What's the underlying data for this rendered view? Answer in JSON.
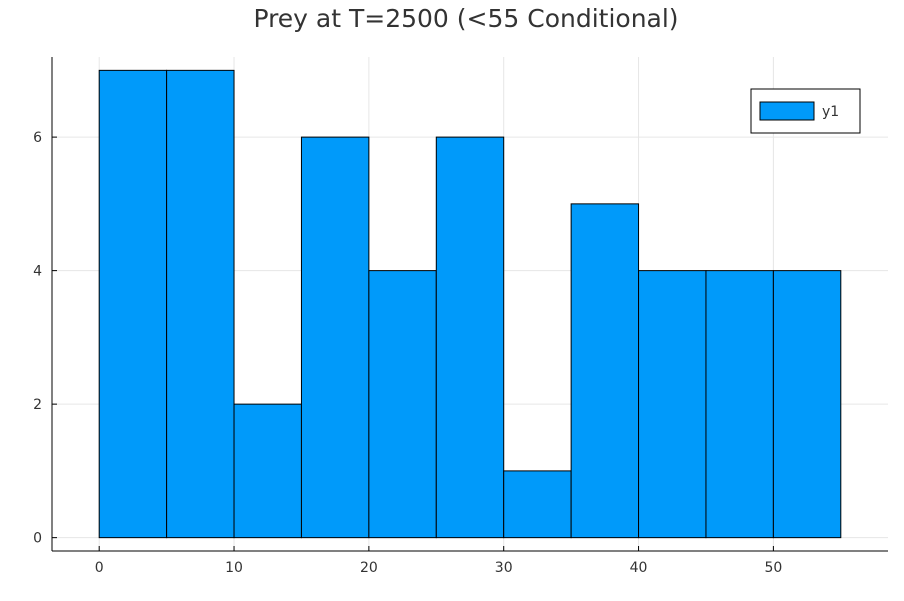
{
  "chart_data": {
    "type": "bar",
    "title": "Prey at T=2500 (<55 Conditional)",
    "xlabel": "",
    "ylabel": "",
    "bin_edges": [
      0,
      5,
      10,
      15,
      20,
      25,
      30,
      35,
      40,
      45,
      50,
      55
    ],
    "series": [
      {
        "name": "y1",
        "values": [
          7,
          7,
          2,
          6,
          4,
          6,
          1,
          5,
          4,
          4,
          4
        ],
        "color": "#009AFA"
      }
    ],
    "xlim": [
      -3.5,
      58.5
    ],
    "ylim": [
      -0.2,
      7.2
    ],
    "xticks": [
      0,
      10,
      20,
      30,
      40,
      50
    ],
    "yticks": [
      0,
      2,
      4,
      6
    ],
    "grid": true,
    "legend_position": "top-right"
  }
}
